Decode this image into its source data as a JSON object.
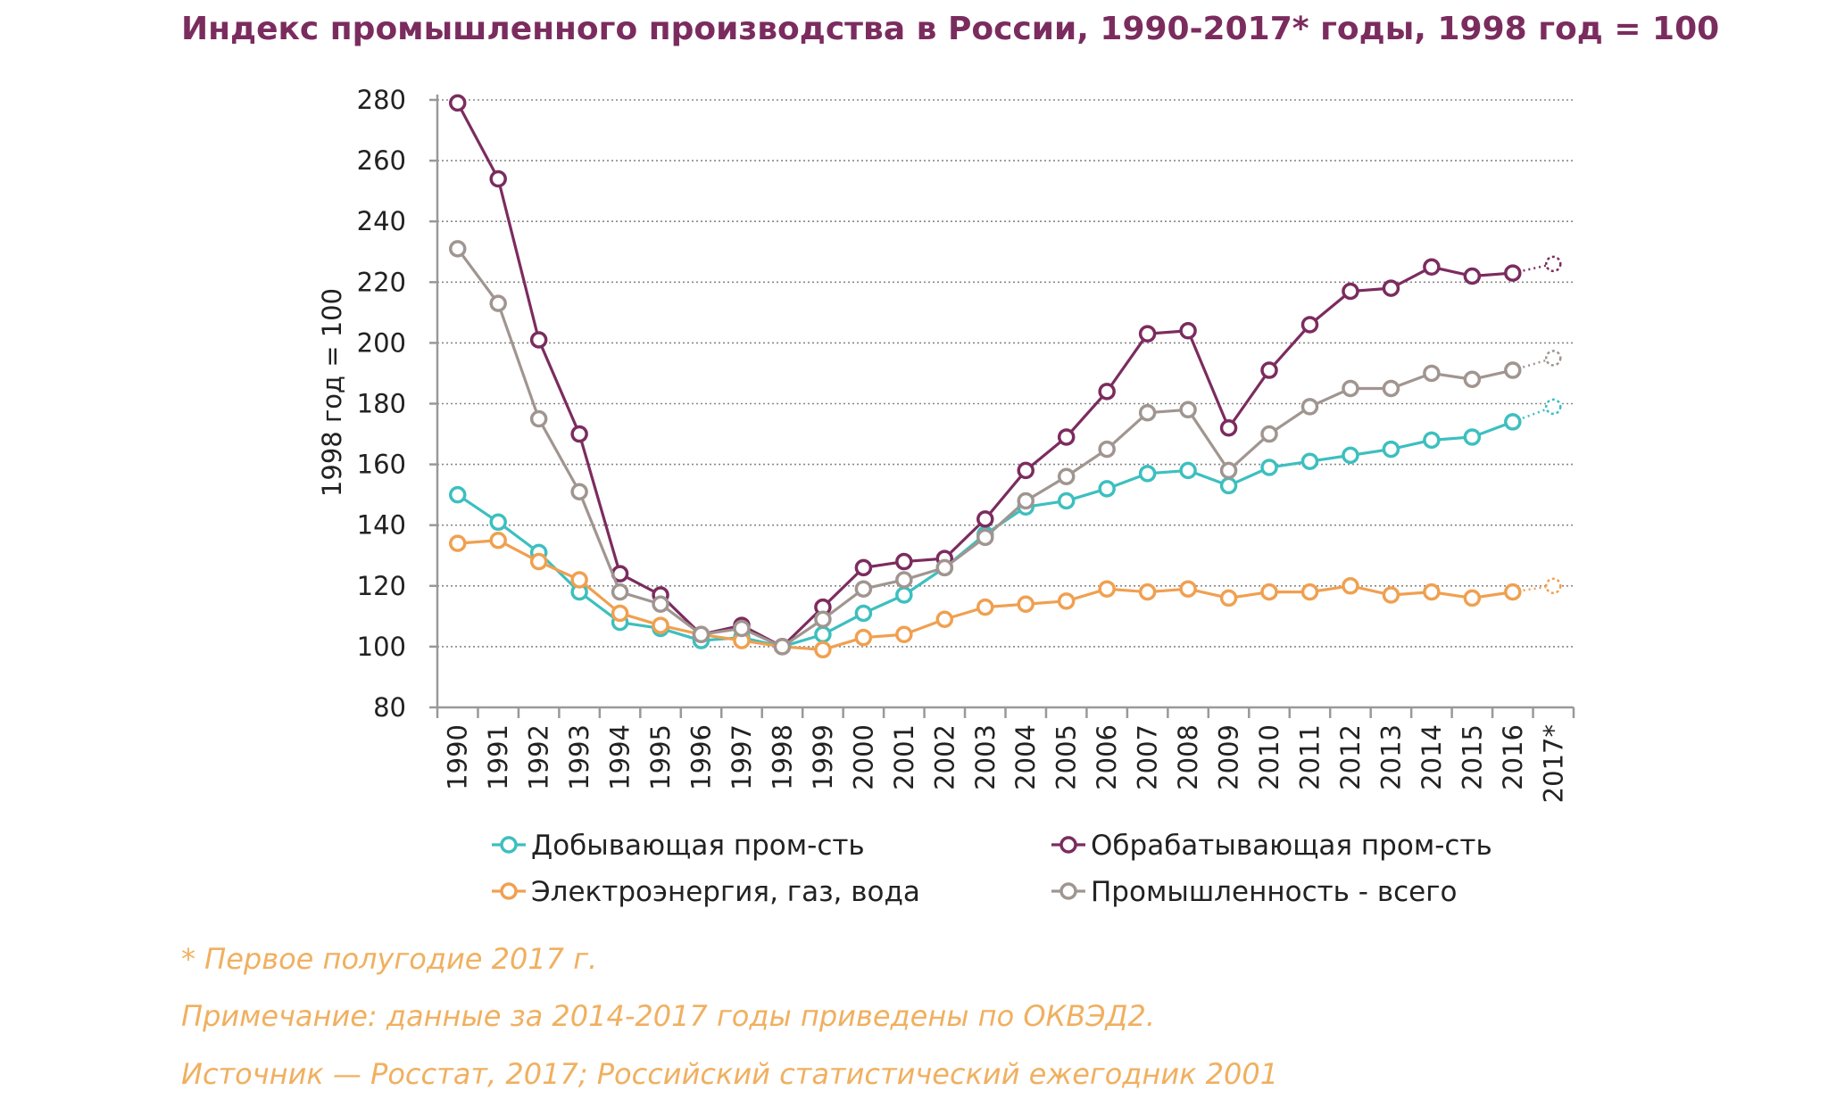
{
  "chart_data": {
    "type": "line",
    "title": "Индекс промышленного производства в России, 1990-2017* годы, 1998 год = 100",
    "ylabel": "1998 год = 100",
    "xlabel": "",
    "ylim": [
      80,
      280
    ],
    "yticks": [
      80,
      100,
      120,
      140,
      160,
      180,
      200,
      220,
      240,
      260,
      280
    ],
    "categories": [
      "1990",
      "1991",
      "1992",
      "1993",
      "1994",
      "1995",
      "1996",
      "1997",
      "1998",
      "1999",
      "2000",
      "2001",
      "2002",
      "2003",
      "2004",
      "2005",
      "2006",
      "2007",
      "2008",
      "2009",
      "2010",
      "2011",
      "2012",
      "2013",
      "2014",
      "2015",
      "2016",
      "2017*"
    ],
    "grid": "horizontal dotted",
    "legend_position": "bottom",
    "series": [
      {
        "name": "Добывающая пром-сть",
        "color": "#3dbfbf",
        "values": [
          150,
          141,
          131,
          118,
          108,
          106,
          102,
          103,
          100,
          104,
          111,
          117,
          126,
          137,
          146,
          148,
          152,
          157,
          158,
          153,
          159,
          161,
          163,
          165,
          168,
          169,
          174,
          179
        ]
      },
      {
        "name": "Обрабатывающая пром-сть",
        "color": "#7b2c5e",
        "values": [
          279,
          254,
          201,
          170,
          124,
          117,
          104,
          107,
          100,
          113,
          126,
          128,
          129,
          142,
          158,
          169,
          184,
          203,
          204,
          172,
          191,
          206,
          217,
          218,
          225,
          222,
          223,
          226
        ]
      },
      {
        "name": "Электроэнергия, газ, вода",
        "color": "#f0a050",
        "values": [
          134,
          135,
          128,
          122,
          111,
          107,
          104,
          102,
          100,
          99,
          103,
          104,
          109,
          113,
          114,
          115,
          119,
          118,
          119,
          116,
          118,
          118,
          120,
          117,
          118,
          116,
          118,
          120
        ]
      },
      {
        "name": "Промышленность - всего",
        "color": "#a09590",
        "values": [
          231,
          213,
          175,
          151,
          118,
          114,
          104,
          106,
          100,
          109,
          119,
          122,
          126,
          136,
          148,
          156,
          165,
          177,
          178,
          158,
          170,
          179,
          185,
          185,
          190,
          188,
          191,
          195
        ]
      }
    ],
    "projected_last_point": true
  },
  "notes": {
    "footnote": "* Первое полугодие 2017 г.",
    "remark": "Примечание: данные за 2014-2017 годы приведены по ОКВЭД2.",
    "source": "Источник — Росстат, 2017; Российский статистический ежегодник 2001"
  },
  "colors": {
    "title": "#7b2c5e",
    "notes": "#f0b060",
    "grid": "#888888",
    "axis": "#999999"
  }
}
